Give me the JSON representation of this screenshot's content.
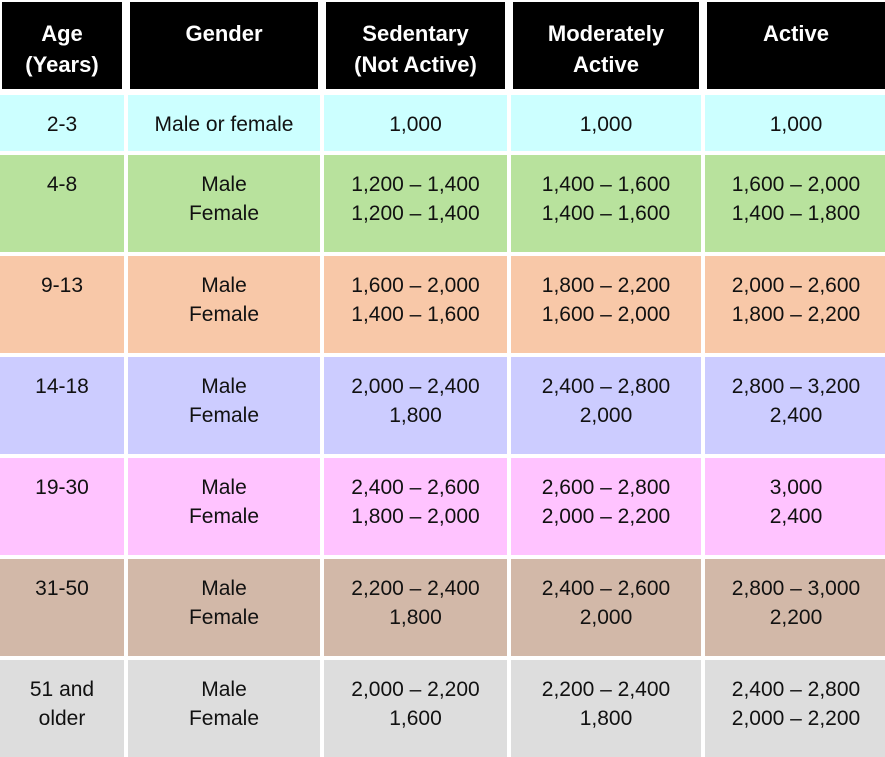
{
  "table": {
    "headers": [
      [
        "Age",
        "(Years)"
      ],
      [
        "Gender"
      ],
      [
        "Sedentary",
        "(Not Active)"
      ],
      [
        "Moderately",
        "Active"
      ],
      [
        "Active"
      ]
    ],
    "rows": [
      {
        "color": "#ccffff",
        "cells": [
          [
            "2-3"
          ],
          [
            "Male or female"
          ],
          [
            "1,000"
          ],
          [
            "1,000"
          ],
          [
            "1,000"
          ]
        ]
      },
      {
        "color": "#b8e29d",
        "cells": [
          [
            "4-8"
          ],
          [
            "Male",
            "Female"
          ],
          [
            "1,200 – 1,400",
            "1,200 – 1,400"
          ],
          [
            "1,400 – 1,600",
            "1,400 – 1,600"
          ],
          [
            "1,600 – 2,000",
            "1,400 – 1,800"
          ]
        ]
      },
      {
        "color": "#f8c8a8",
        "cells": [
          [
            "9-13"
          ],
          [
            "Male",
            "Female"
          ],
          [
            "1,600 – 2,000",
            "1,400 – 1,600"
          ],
          [
            "1,800 – 2,200",
            "1,600 – 2,000"
          ],
          [
            "2,000 – 2,600",
            "1,800 – 2,200"
          ]
        ]
      },
      {
        "color": "#ccccff",
        "cells": [
          [
            "14-18"
          ],
          [
            "Male",
            "Female"
          ],
          [
            "2,000 – 2,400",
            "1,800"
          ],
          [
            "2,400 – 2,800",
            "2,000"
          ],
          [
            "2,800 – 3,200",
            "2,400"
          ]
        ]
      },
      {
        "color": "#ffc3ff",
        "cells": [
          [
            "19-30"
          ],
          [
            "Male",
            "Female"
          ],
          [
            "2,400 – 2,600",
            "1,800 – 2,000"
          ],
          [
            "2,600 – 2,800",
            "2,000 – 2,200"
          ],
          [
            "3,000",
            "2,400"
          ]
        ]
      },
      {
        "color": "#d2b8a8",
        "cells": [
          [
            "31-50"
          ],
          [
            "Male",
            "Female"
          ],
          [
            "2,200 – 2,400",
            "1,800"
          ],
          [
            "2,400 – 2,600",
            "2,000"
          ],
          [
            "2,800 – 3,000",
            "2,200"
          ]
        ]
      },
      {
        "color": "#dddddd",
        "cells": [
          [
            "51 and",
            "older"
          ],
          [
            "Male",
            "Female"
          ],
          [
            "2,000 – 2,200",
            "1,600"
          ],
          [
            "2,200 – 2,400",
            "1,800"
          ],
          [
            "2,400 – 2,800",
            "2,000 – 2,200"
          ]
        ]
      }
    ]
  }
}
